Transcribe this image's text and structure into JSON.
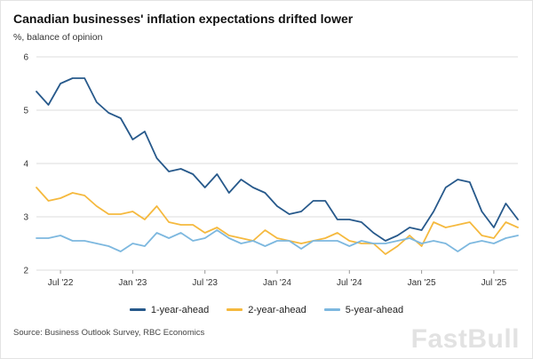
{
  "header": {
    "title": "Canadian businesses' inflation expectations drifted lower",
    "subtitle": "%, balance of opinion"
  },
  "chart_data": {
    "type": "line",
    "title": "Canadian businesses' inflation expectations drifted lower",
    "subtitle": "%, balance of opinion",
    "xlabel": "",
    "ylabel": "%, balance of opinion",
    "ylim": [
      2,
      6
    ],
    "y_ticks": [
      2,
      3,
      4,
      5,
      6
    ],
    "grid": "horizontal",
    "legend_position": "bottom",
    "x": [
      "May '22",
      "Jun '22",
      "Jul '22",
      "Aug '22",
      "Sep '22",
      "Oct '22",
      "Nov '22",
      "Dec '22",
      "Jan '23",
      "Feb '23",
      "Mar '23",
      "Apr '23",
      "May '23",
      "Jun '23",
      "Jul '23",
      "Aug '23",
      "Sep '23",
      "Oct '23",
      "Nov '23",
      "Dec '23",
      "Jan '24",
      "Feb '24",
      "Mar '24",
      "Apr '24",
      "May '24",
      "Jun '24",
      "Jul '24",
      "Aug '24",
      "Sep '24",
      "Oct '24",
      "Nov '24",
      "Dec '24",
      "Jan '25",
      "Feb '25",
      "Mar '25",
      "Apr '25",
      "May '25",
      "Jun '25",
      "Jul '25",
      "Aug '25",
      "Sep '25"
    ],
    "x_tick_labels": [
      "Jul '22",
      "Jan '23",
      "Jul '23",
      "Jan '24",
      "Jul '24",
      "Jan '25",
      "Jul '25"
    ],
    "x_tick_indices": [
      2,
      8,
      14,
      20,
      26,
      32,
      38
    ],
    "series": [
      {
        "name": "1-year-ahead",
        "color": "#27598b",
        "values": [
          5.35,
          5.1,
          5.5,
          5.6,
          5.6,
          5.15,
          4.95,
          4.85,
          4.45,
          4.6,
          4.1,
          3.85,
          3.9,
          3.8,
          3.55,
          3.8,
          3.45,
          3.7,
          3.55,
          3.45,
          3.2,
          3.05,
          3.1,
          3.3,
          3.3,
          2.95,
          2.95,
          2.9,
          2.7,
          2.55,
          2.65,
          2.8,
          2.75,
          3.1,
          3.55,
          3.7,
          3.65,
          3.1,
          2.8,
          3.25,
          2.95
        ]
      },
      {
        "name": "2-year-ahead",
        "color": "#f5b93e",
        "values": [
          3.55,
          3.3,
          3.35,
          3.45,
          3.4,
          3.2,
          3.05,
          3.05,
          3.1,
          2.95,
          3.2,
          2.9,
          2.85,
          2.85,
          2.7,
          2.8,
          2.65,
          2.6,
          2.55,
          2.75,
          2.6,
          2.55,
          2.5,
          2.55,
          2.6,
          2.7,
          2.55,
          2.5,
          2.5,
          2.3,
          2.45,
          2.65,
          2.45,
          2.9,
          2.8,
          2.85,
          2.9,
          2.65,
          2.6,
          2.9,
          2.8
        ]
      },
      {
        "name": "5-year-ahead",
        "color": "#7db8df",
        "values": [
          2.6,
          2.6,
          2.65,
          2.55,
          2.55,
          2.5,
          2.45,
          2.35,
          2.5,
          2.45,
          2.7,
          2.6,
          2.7,
          2.55,
          2.6,
          2.75,
          2.6,
          2.5,
          2.55,
          2.45,
          2.55,
          2.55,
          2.4,
          2.55,
          2.55,
          2.55,
          2.45,
          2.55,
          2.5,
          2.5,
          2.55,
          2.6,
          2.5,
          2.55,
          2.5,
          2.35,
          2.5,
          2.55,
          2.5,
          2.6,
          2.65
        ]
      }
    ],
    "style": {
      "grid_color": "#dddddd",
      "tick_color": "#999999",
      "axis_text_color": "#333333"
    }
  },
  "footer": {
    "source": "Source: Business Outlook Survey, RBC Economics",
    "watermark": "FastBull"
  }
}
